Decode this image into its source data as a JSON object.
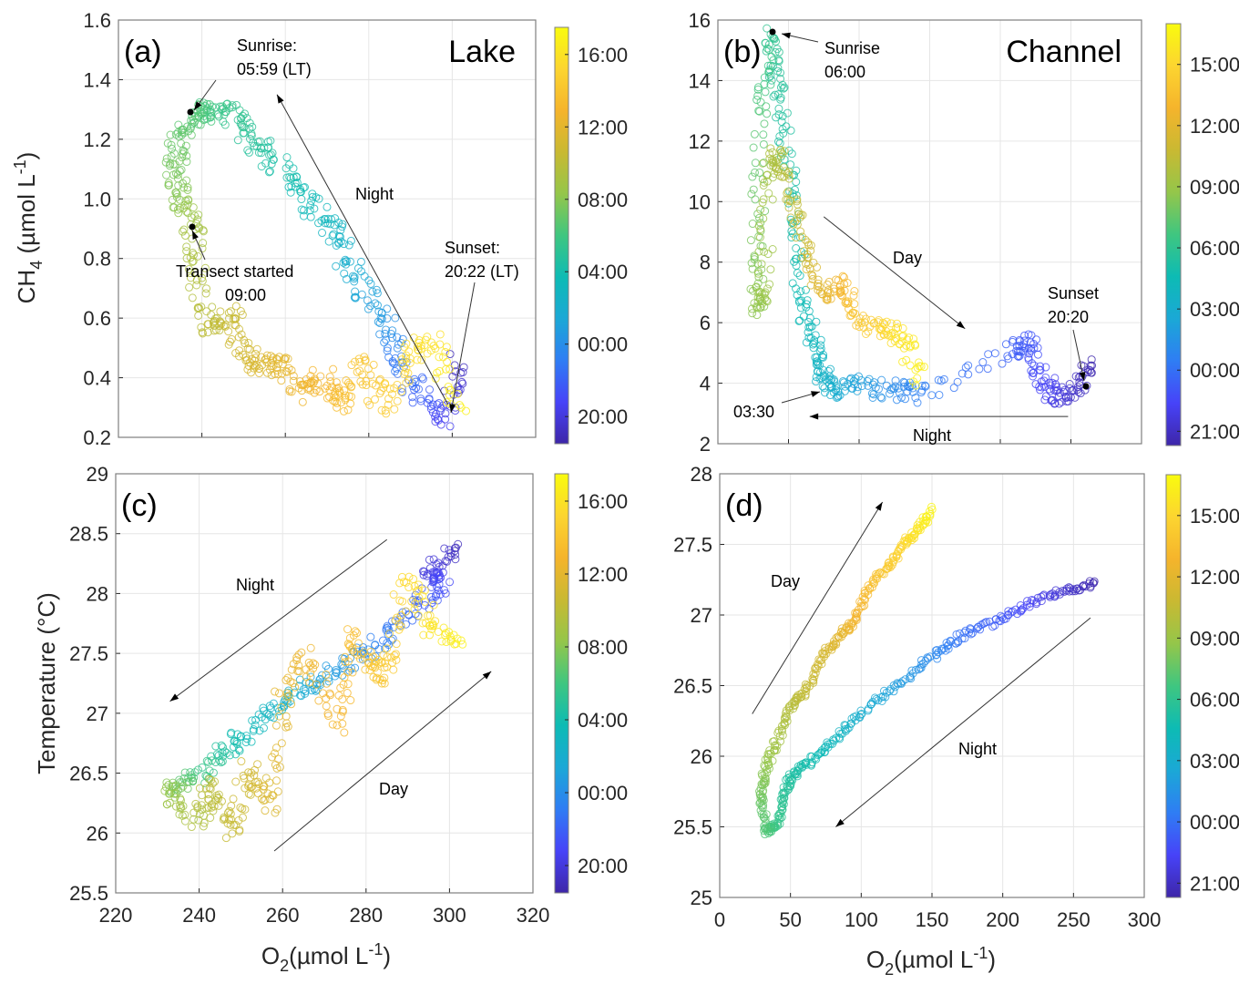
{
  "colormap": [
    "#3e26a8",
    "#4743f8",
    "#2f7df4",
    "#1ba8d6",
    "#0dbbb4",
    "#3fc680",
    "#94c64a",
    "#c9b932",
    "#f5b42c",
    "#fcd530",
    "#f9fb0e"
  ],
  "chart_data": [
    {
      "id": "a",
      "type": "scatter",
      "panel_label": "(a)",
      "title": "Lake",
      "xlabel": "",
      "ylabel": "CH4 (µmol L-1)",
      "xlim": [
        220,
        320
      ],
      "ylim": [
        0.2,
        1.6
      ],
      "xticks": [
        220,
        240,
        260,
        280,
        300,
        320
      ],
      "xtick_labels_shown": false,
      "yticks": [
        "0.2",
        "0.4",
        "0.6",
        "0.8",
        "1.0",
        "1.2",
        "1.4",
        "1.6"
      ],
      "grid": true,
      "colorbar": {
        "label_ticks": [
          "20:00",
          "00:00",
          "04:00",
          "08:00",
          "12:00",
          "16:00"
        ],
        "range_hours": [
          18.5,
          41.5
        ]
      },
      "annotations": [
        {
          "text": [
            "Sunrise:",
            "05:59 (LT)"
          ],
          "point": [
            238,
            1.29
          ]
        },
        {
          "text": [
            "Transect started",
            "09:00"
          ],
          "point": [
            238,
            0.9
          ]
        },
        {
          "text": [
            "Sunset:",
            "20:22 (LT)"
          ],
          "point": [
            300,
            0.29
          ]
        },
        {
          "text": [
            "Night"
          ],
          "arrow_from": [
            299,
            0.31
          ],
          "arrow_to": [
            258,
            1.35
          ]
        }
      ],
      "series_path": [
        {
          "x": 302,
          "y": 0.45,
          "t": 19.0
        },
        {
          "x": 298,
          "y": 0.26,
          "t": 20.5
        },
        {
          "x": 292,
          "y": 0.35,
          "t": 22.0
        },
        {
          "x": 287,
          "y": 0.45,
          "t": 23.0
        },
        {
          "x": 283,
          "y": 0.6,
          "t": 24.5
        },
        {
          "x": 278,
          "y": 0.72,
          "t": 25.5
        },
        {
          "x": 273,
          "y": 0.85,
          "t": 26.5
        },
        {
          "x": 268,
          "y": 0.95,
          "t": 27.2
        },
        {
          "x": 262,
          "y": 1.05,
          "t": 27.8
        },
        {
          "x": 256,
          "y": 1.15,
          "t": 28.5
        },
        {
          "x": 251,
          "y": 1.22,
          "t": 29.0
        },
        {
          "x": 246,
          "y": 1.3,
          "t": 29.5
        },
        {
          "x": 241,
          "y": 1.3,
          "t": 30.0
        },
        {
          "x": 238,
          "y": 1.28,
          "t": 30.5
        },
        {
          "x": 235,
          "y": 1.2,
          "t": 31.0
        },
        {
          "x": 233,
          "y": 1.1,
          "t": 31.5
        },
        {
          "x": 235,
          "y": 1.0,
          "t": 32.0
        },
        {
          "x": 238,
          "y": 0.9,
          "t": 33.0
        },
        {
          "x": 239,
          "y": 0.75,
          "t": 33.5
        },
        {
          "x": 242,
          "y": 0.55,
          "t": 34.0
        },
        {
          "x": 247,
          "y": 0.62,
          "t": 34.5
        },
        {
          "x": 250,
          "y": 0.48,
          "t": 35.0
        },
        {
          "x": 254,
          "y": 0.44,
          "t": 35.5
        },
        {
          "x": 259,
          "y": 0.45,
          "t": 36.0
        },
        {
          "x": 264,
          "y": 0.35,
          "t": 36.5
        },
        {
          "x": 269,
          "y": 0.4,
          "t": 37.0
        },
        {
          "x": 274,
          "y": 0.3,
          "t": 37.5
        },
        {
          "x": 278,
          "y": 0.45,
          "t": 38.0
        },
        {
          "x": 284,
          "y": 0.3,
          "t": 38.5
        },
        {
          "x": 290,
          "y": 0.48,
          "t": 39.5
        },
        {
          "x": 296,
          "y": 0.52,
          "t": 40.0
        },
        {
          "x": 302,
          "y": 0.27,
          "t": 41.0
        }
      ]
    },
    {
      "id": "b",
      "type": "scatter",
      "panel_label": "(b)",
      "title": "Channel",
      "xlabel": "",
      "ylabel": "",
      "xlim": [
        0,
        300
      ],
      "ylim": [
        2,
        16
      ],
      "xticks": [
        0,
        50,
        100,
        150,
        200,
        250,
        300
      ],
      "xtick_labels_shown": false,
      "yticks": [
        "2",
        "4",
        "6",
        "8",
        "10",
        "12",
        "14",
        "16"
      ],
      "grid": true,
      "colorbar": {
        "label_ticks": [
          "21:00",
          "00:00",
          "03:00",
          "06:00",
          "09:00",
          "12:00",
          "15:00"
        ],
        "range_hours": [
          20.3,
          41.0
        ]
      },
      "annotations": [
        {
          "text": [
            "Sunrise",
            "06:00"
          ],
          "point": [
            38,
            15.6
          ]
        },
        {
          "text": [
            "Sunset",
            "20:20"
          ],
          "point": [
            263,
            3.9
          ]
        },
        {
          "text": [
            "03:30"
          ],
          "point": [
            73,
            3.7
          ]
        },
        {
          "text": [
            "Day"
          ],
          "arrow_from": [
            75,
            9.5
          ],
          "arrow_to": [
            175,
            5.8
          ]
        },
        {
          "text": [
            "Night"
          ],
          "arrow_from": [
            248,
            2.9
          ],
          "arrow_to": [
            65,
            2.9
          ]
        }
      ],
      "series_path": [
        {
          "x": 262,
          "y": 4.5,
          "t": 20.4
        },
        {
          "x": 255,
          "y": 3.8,
          "t": 21.0
        },
        {
          "x": 240,
          "y": 3.5,
          "t": 21.8
        },
        {
          "x": 228,
          "y": 4.2,
          "t": 22.5
        },
        {
          "x": 220,
          "y": 5.3,
          "t": 23.0
        },
        {
          "x": 210,
          "y": 5.1,
          "t": 23.3
        },
        {
          "x": 145,
          "y": 3.6,
          "t": 24.5
        },
        {
          "x": 125,
          "y": 3.8,
          "t": 25.0
        },
        {
          "x": 100,
          "y": 3.9,
          "t": 26.0
        },
        {
          "x": 82,
          "y": 3.8,
          "t": 27.0
        },
        {
          "x": 75,
          "y": 4.2,
          "t": 27.5
        },
        {
          "x": 68,
          "y": 5.2,
          "t": 28.0
        },
        {
          "x": 60,
          "y": 6.5,
          "t": 28.5
        },
        {
          "x": 55,
          "y": 9.0,
          "t": 29.0
        },
        {
          "x": 48,
          "y": 12.0,
          "t": 29.3
        },
        {
          "x": 42,
          "y": 14.0,
          "t": 29.6
        },
        {
          "x": 38,
          "y": 15.5,
          "t": 30.0
        },
        {
          "x": 30,
          "y": 13.0,
          "t": 31.0
        },
        {
          "x": 28,
          "y": 9.0,
          "t": 32.0
        },
        {
          "x": 28,
          "y": 6.5,
          "t": 32.5
        },
        {
          "x": 33,
          "y": 7.0,
          "t": 33.0
        },
        {
          "x": 35,
          "y": 11.0,
          "t": 33.3
        },
        {
          "x": 42,
          "y": 11.5,
          "t": 33.8
        },
        {
          "x": 52,
          "y": 10.0,
          "t": 34.3
        },
        {
          "x": 62,
          "y": 8.2,
          "t": 35.0
        },
        {
          "x": 75,
          "y": 7.0,
          "t": 36.0
        },
        {
          "x": 90,
          "y": 7.2,
          "t": 37.0
        },
        {
          "x": 102,
          "y": 6.0,
          "t": 38.0
        },
        {
          "x": 118,
          "y": 5.8,
          "t": 39.0
        },
        {
          "x": 130,
          "y": 5.5,
          "t": 39.8
        },
        {
          "x": 145,
          "y": 4.2,
          "t": 40.5
        }
      ]
    },
    {
      "id": "c",
      "type": "scatter",
      "panel_label": "(c)",
      "title": "",
      "xlabel": "O2 (µmol L-1)",
      "ylabel": "Temperature (°C)",
      "xlim": [
        220,
        320
      ],
      "ylim": [
        25.5,
        29
      ],
      "xticks": [
        "220",
        "240",
        "260",
        "280",
        "300",
        "320"
      ],
      "yticks": [
        "25.5",
        "26",
        "26.5",
        "27",
        "27.5",
        "28",
        "28.5",
        "29"
      ],
      "grid": true,
      "colorbar": {
        "label_ticks": [
          "20:00",
          "00:00",
          "04:00",
          "08:00",
          "12:00",
          "16:00"
        ],
        "range_hours": [
          18.5,
          41.5
        ]
      },
      "annotations": [
        {
          "text": [
            "Night"
          ],
          "arrow_from": [
            285,
            28.45
          ],
          "arrow_to": [
            233,
            27.1
          ]
        },
        {
          "text": [
            "Day"
          ],
          "arrow_from": [
            258,
            25.85
          ],
          "arrow_to": [
            310,
            27.35
          ]
        }
      ],
      "series_path": [
        {
          "x": 301,
          "y": 28.4,
          "t": 19.0
        },
        {
          "x": 295,
          "y": 28.2,
          "t": 20.0
        },
        {
          "x": 298,
          "y": 28.1,
          "t": 21.0
        },
        {
          "x": 293,
          "y": 27.9,
          "t": 22.0
        },
        {
          "x": 285,
          "y": 27.65,
          "t": 23.0
        },
        {
          "x": 278,
          "y": 27.45,
          "t": 24.0
        },
        {
          "x": 270,
          "y": 27.3,
          "t": 25.0
        },
        {
          "x": 262,
          "y": 27.15,
          "t": 26.0
        },
        {
          "x": 255,
          "y": 26.95,
          "t": 27.0
        },
        {
          "x": 248,
          "y": 26.75,
          "t": 28.0
        },
        {
          "x": 242,
          "y": 26.55,
          "t": 29.5
        },
        {
          "x": 236,
          "y": 26.4,
          "t": 31.0
        },
        {
          "x": 233,
          "y": 26.33,
          "t": 32.5
        },
        {
          "x": 240,
          "y": 26.1,
          "t": 33.5
        },
        {
          "x": 243,
          "y": 26.4,
          "t": 34.0
        },
        {
          "x": 248,
          "y": 26.0,
          "t": 34.5
        },
        {
          "x": 252,
          "y": 26.55,
          "t": 35.0
        },
        {
          "x": 257,
          "y": 26.2,
          "t": 35.5
        },
        {
          "x": 260,
          "y": 27.1,
          "t": 36.0
        },
        {
          "x": 266,
          "y": 27.5,
          "t": 36.5
        },
        {
          "x": 273,
          "y": 26.9,
          "t": 37.0
        },
        {
          "x": 277,
          "y": 27.65,
          "t": 37.5
        },
        {
          "x": 282,
          "y": 27.3,
          "t": 38.0
        },
        {
          "x": 286,
          "y": 27.45,
          "t": 38.5
        },
        {
          "x": 290,
          "y": 28.15,
          "t": 39.5
        },
        {
          "x": 296,
          "y": 27.7,
          "t": 40.0
        },
        {
          "x": 302,
          "y": 27.6,
          "t": 41.0
        }
      ]
    },
    {
      "id": "d",
      "type": "scatter",
      "panel_label": "(d)",
      "title": "",
      "xlabel": "O2 (µmol L-1)",
      "ylabel": "",
      "xlim": [
        0,
        300
      ],
      "ylim": [
        25,
        28
      ],
      "xticks": [
        "0",
        "50",
        "100",
        "150",
        "200",
        "250",
        "300"
      ],
      "yticks": [
        "25",
        "25.5",
        "26",
        "26.5",
        "27",
        "27.5",
        "28"
      ],
      "grid": true,
      "colorbar": {
        "label_ticks": [
          "21:00",
          "00:00",
          "03:00",
          "06:00",
          "09:00",
          "12:00",
          "15:00"
        ],
        "range_hours": [
          20.3,
          41.0
        ]
      },
      "annotations": [
        {
          "text": [
            "Day"
          ],
          "arrow_from": [
            23,
            26.3
          ],
          "arrow_to": [
            115,
            27.8
          ]
        },
        {
          "text": [
            "Night"
          ],
          "arrow_from": [
            262,
            26.98
          ],
          "arrow_to": [
            82,
            25.5
          ]
        }
      ],
      "series_path": [
        {
          "x": 265,
          "y": 27.22,
          "t": 20.4
        },
        {
          "x": 245,
          "y": 27.18,
          "t": 21.2
        },
        {
          "x": 220,
          "y": 27.08,
          "t": 22.2
        },
        {
          "x": 195,
          "y": 26.95,
          "t": 23.2
        },
        {
          "x": 170,
          "y": 26.85,
          "t": 24.0
        },
        {
          "x": 150,
          "y": 26.7,
          "t": 25.0
        },
        {
          "x": 125,
          "y": 26.5,
          "t": 26.0
        },
        {
          "x": 100,
          "y": 26.3,
          "t": 27.0
        },
        {
          "x": 80,
          "y": 26.1,
          "t": 28.0
        },
        {
          "x": 62,
          "y": 25.95,
          "t": 28.8
        },
        {
          "x": 50,
          "y": 25.85,
          "t": 29.3
        },
        {
          "x": 45,
          "y": 25.7,
          "t": 29.8
        },
        {
          "x": 40,
          "y": 25.5,
          "t": 30.3
        },
        {
          "x": 33,
          "y": 25.47,
          "t": 31.0
        },
        {
          "x": 29,
          "y": 25.7,
          "t": 31.8
        },
        {
          "x": 32,
          "y": 25.9,
          "t": 32.5
        },
        {
          "x": 40,
          "y": 26.1,
          "t": 33.3
        },
        {
          "x": 50,
          "y": 26.35,
          "t": 34.0
        },
        {
          "x": 60,
          "y": 26.45,
          "t": 34.5
        },
        {
          "x": 72,
          "y": 26.7,
          "t": 35.2
        },
        {
          "x": 85,
          "y": 26.85,
          "t": 36.0
        },
        {
          "x": 95,
          "y": 26.95,
          "t": 36.7
        },
        {
          "x": 105,
          "y": 27.2,
          "t": 37.3
        },
        {
          "x": 120,
          "y": 27.35,
          "t": 38.2
        },
        {
          "x": 130,
          "y": 27.5,
          "t": 39.0
        },
        {
          "x": 140,
          "y": 27.6,
          "t": 39.8
        },
        {
          "x": 150,
          "y": 27.75,
          "t": 40.7
        }
      ]
    }
  ],
  "labels": {
    "ylabel_top": "CH",
    "ylabel_top_sub": "4",
    "ylabel_top_rest": " (µmol L",
    "ylabel_top_sup": "-1",
    "ylabel_top_close": ")",
    "ylabel_bottom": "Temperature (°C)",
    "xlabel_o2": "O",
    "xlabel_o2_sub": "2",
    "xlabel_o2_rest": "(µmol L",
    "xlabel_o2_sup": "-1",
    "xlabel_o2_close": ")"
  }
}
